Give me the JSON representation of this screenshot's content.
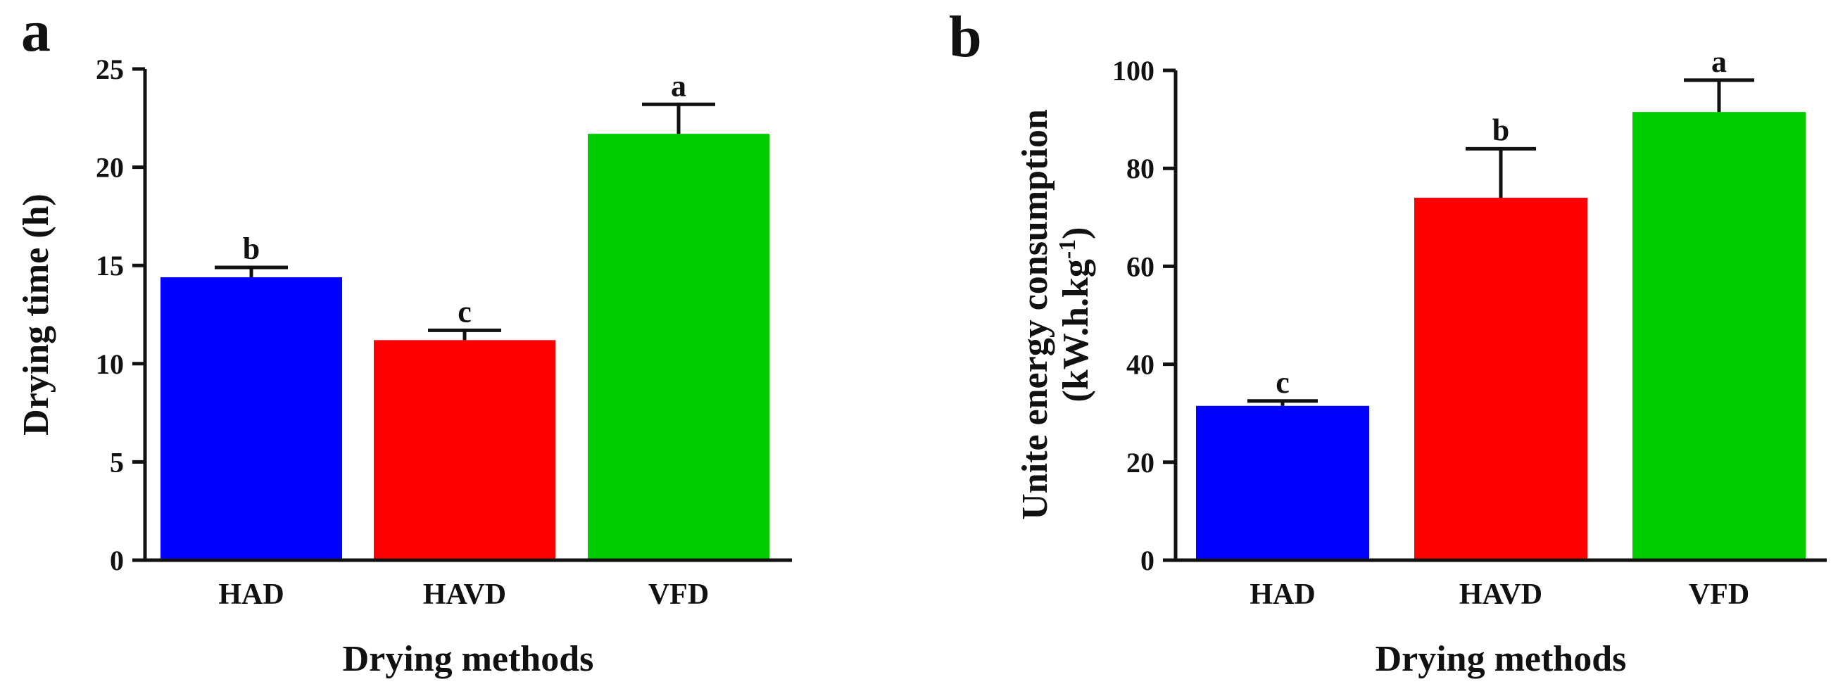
{
  "figure": {
    "panels": [
      "a",
      "b"
    ]
  },
  "chart_data": [
    {
      "panel": "a",
      "type": "bar",
      "categories": [
        "HAD",
        "HAVD",
        "VFD"
      ],
      "values": [
        14.4,
        11.2,
        21.7
      ],
      "errors": [
        0.5,
        0.5,
        1.5
      ],
      "significance": [
        "b",
        "c",
        "a"
      ],
      "colors": [
        "#0000ff",
        "#ff0000",
        "#00cc00"
      ],
      "title": "",
      "xlabel": "Drying methods",
      "ylabel": "Drying time (h)",
      "ylim": [
        0,
        25
      ],
      "yticks": [
        0,
        5,
        10,
        15,
        20,
        25
      ],
      "grid": false
    },
    {
      "panel": "b",
      "type": "bar",
      "categories": [
        "HAD",
        "HAVD",
        "VFD"
      ],
      "values": [
        31.5,
        74.0,
        91.5
      ],
      "errors": [
        1.0,
        10.0,
        6.5
      ],
      "significance": [
        "c",
        "b",
        "a"
      ],
      "colors": [
        "#0000ff",
        "#ff0000",
        "#00cc00"
      ],
      "title": "",
      "xlabel": "Drying methods",
      "ylabel": "Unite energy consumption",
      "ylabel_line2_prefix": "(kW.h.kg",
      "ylabel_line2_superscript": "-1",
      "ylabel_line2_suffix": ")",
      "ylim": [
        0,
        100
      ],
      "yticks": [
        0,
        20,
        40,
        60,
        80,
        100
      ],
      "grid": false
    }
  ]
}
